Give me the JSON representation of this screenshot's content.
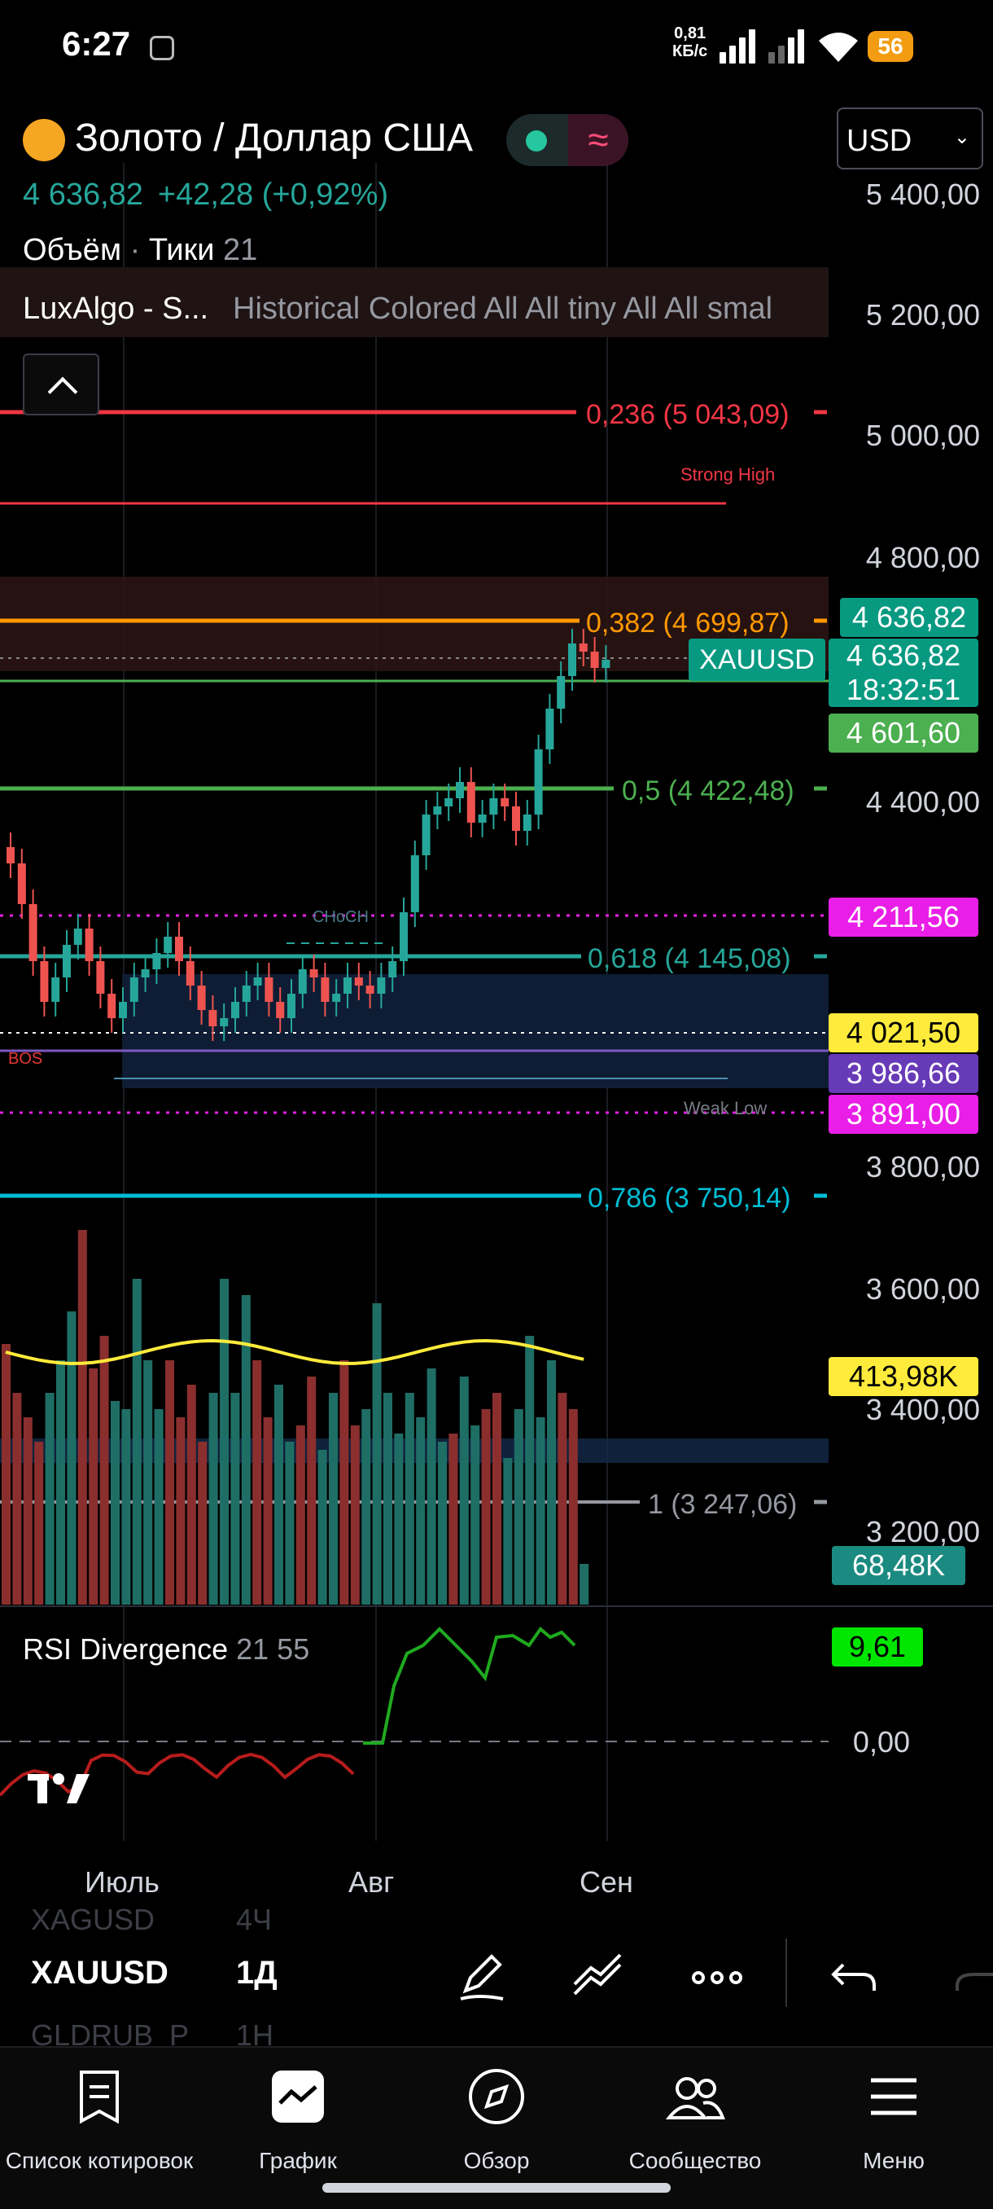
{
  "status_bar": {
    "time": "6:27",
    "speed": "0,81",
    "speed_unit": "КБ/с",
    "battery": "56"
  },
  "header": {
    "symbol_title": "Золото / Доллар США",
    "currency": "USD",
    "last_price": "4 636,82",
    "change": "+42,28 (+0,92%)",
    "volume_label": "Объём",
    "ticks_label": "Тики",
    "ticks_value": "21"
  },
  "indicator": {
    "name": "LuxAlgo - S...",
    "params": "Historical Colored All All tiny All All smal"
  },
  "price_axis": {
    "ticks": [
      "5 400,00",
      "5 200,00",
      "5 000,00",
      "4 800,00",
      "4 400,00",
      "3 800,00",
      "3 600,00",
      "3 400,00",
      "3 200,00"
    ],
    "tags": {
      "price": "4 636,82",
      "symbol": "XAUUSD",
      "symbol_price": "4 636,82",
      "countdown": "18:32:51",
      "green_level": "4 601,60",
      "magenta_top": "4 211,56",
      "yellow_level": "4 021,50",
      "purple_level": "3 986,66",
      "magenta_bottom": "3 891,00",
      "volume_ma": "413,98K",
      "volume_last": "68,48K"
    }
  },
  "fib_levels": {
    "f0236": "0,236 (5 043,09)",
    "f0382": "0,382 (4 699,87)",
    "f05": "0,5 (4 422,48)",
    "f0618": "0,618 (4 145,08)",
    "f0786": "0,786 (3 750,14)",
    "f1": "1 (3 247,06)"
  },
  "annotations": {
    "strong_high": "Strong High",
    "weak_low": "Weak Low",
    "choch": "CHoCH",
    "bos": "BOS"
  },
  "rsi": {
    "name": "RSI Divergence",
    "params": "21 55",
    "value": "9,61",
    "zero": "0,00"
  },
  "time_axis": [
    "Июль",
    "Авг",
    "Сен"
  ],
  "symbol_strip": {
    "prev_symbol": "XAGUSD",
    "prev_interval": "4Ч",
    "symbol": "XAUUSD",
    "interval": "1Д",
    "next_symbol": "GLDRUB_P",
    "next_interval": "1Н"
  },
  "nav": [
    "Список котировок",
    "График",
    "Обзор",
    "Сообщество",
    "Меню"
  ],
  "colors": {
    "up": "#26a69a",
    "down": "#ef5350",
    "fib0236": "#f23645",
    "fib0382": "#ff9800",
    "fib05": "#4caf50",
    "fib0786": "#00bcd4",
    "magenta": "#e91ee7",
    "yellow": "#ffeb3b"
  }
}
